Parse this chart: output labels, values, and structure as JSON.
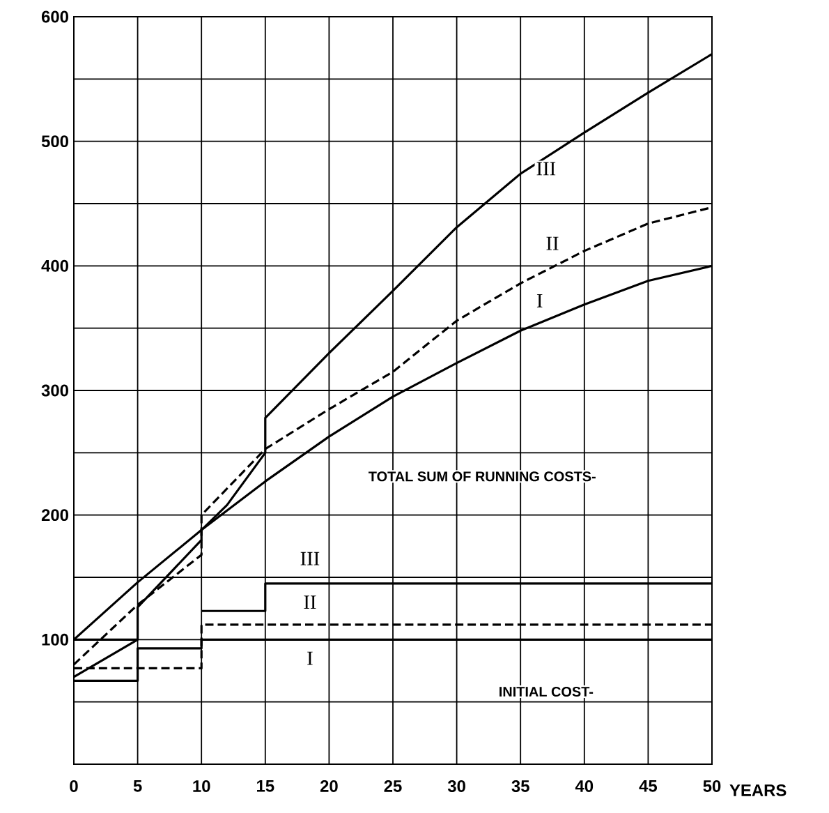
{
  "chart_data": {
    "type": "line",
    "xlabel": "YEARS",
    "xlim": [
      0,
      50
    ],
    "ylim": [
      0,
      600
    ],
    "xticks": [
      0,
      5,
      10,
      15,
      20,
      25,
      30,
      35,
      40,
      45,
      50
    ],
    "yticks": [
      {
        "value": 0,
        "label": null
      },
      {
        "value": 50,
        "label": null
      },
      100,
      {
        "value": 150,
        "label": null
      },
      200,
      {
        "value": 250,
        "label": null
      },
      300,
      {
        "value": 350,
        "label": null
      },
      400,
      {
        "value": 450,
        "label": null
      },
      500,
      {
        "value": 550,
        "label": null
      },
      600
    ],
    "grid": true,
    "marker": "none",
    "series": [
      {
        "line_style": "solid",
        "color": "#000000",
        "x": [
          0,
          5,
          10,
          12,
          15,
          15,
          20,
          25,
          30,
          35,
          40,
          45,
          50
        ],
        "values": [
          100,
          146,
          188,
          208,
          250,
          278,
          330,
          380,
          431,
          474,
          507,
          539,
          570
        ]
      },
      {
        "line_style": "dashed",
        "color": "#000000",
        "x": [
          0,
          5,
          10,
          10,
          15,
          20,
          25,
          30,
          35,
          40,
          45,
          50
        ],
        "values": [
          80,
          128,
          168,
          200,
          253,
          285,
          315,
          356,
          386,
          412,
          434,
          447
        ]
      },
      {
        "line_style": "solid",
        "color": "#000000",
        "x": [
          0,
          5,
          5,
          10,
          10,
          15,
          20,
          25,
          30,
          35,
          40,
          45,
          50
        ],
        "values": [
          70,
          100,
          126,
          180,
          188,
          227,
          263,
          295,
          322,
          348,
          369,
          388,
          400
        ]
      },
      {
        "type": "step",
        "line_style": "solid",
        "color": "#000000",
        "x": [
          0,
          5
        ],
        "values": [
          100,
          100
        ]
      },
      {
        "type": "step",
        "line_style": "solid",
        "color": "#000000",
        "x": [
          10,
          15,
          50
        ],
        "values": [
          123,
          145,
          145
        ]
      },
      {
        "type": "step",
        "line_style": "dashed",
        "color": "#000000",
        "x": [
          0,
          10,
          50
        ],
        "values": [
          77,
          112,
          112
        ]
      },
      {
        "type": "step",
        "line_style": "solid",
        "color": "#000000",
        "x": [
          0,
          5,
          10,
          50
        ],
        "values": [
          67,
          93,
          100,
          100
        ]
      }
    ],
    "annotations": [
      {
        "text": "III",
        "x": 37,
        "y": 478
      },
      {
        "text": "II",
        "x": 37.5,
        "y": 418
      },
      {
        "text": "I",
        "x": 36.5,
        "y": 372
      },
      {
        "text": "III",
        "x": 18.5,
        "y": 165
      },
      {
        "text": "II",
        "x": 18.5,
        "y": 130
      },
      {
        "text": "I",
        "x": 18.5,
        "y": 85
      },
      "TOTAL SUM OF RUNNING COSTS-",
      "INITIAL COST-"
    ]
  }
}
